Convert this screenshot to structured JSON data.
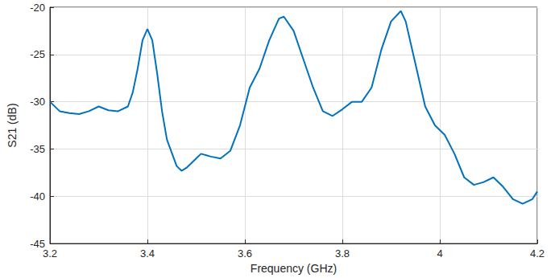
{
  "chart_data": {
    "type": "line",
    "x_label": "Frequency (GHz)",
    "y_label": "S21 (dB)",
    "xlim": [
      3.2,
      4.2
    ],
    "xticks": [
      3.2,
      3.4,
      3.6,
      3.8,
      4,
      4.2
    ],
    "ylim": [
      -45,
      -20
    ],
    "yticks": [
      -45,
      -40,
      -35,
      -30,
      -25,
      -20
    ],
    "grid": true,
    "series": [
      {
        "name": "S21",
        "color": "#0072bd",
        "x": [
          3.2,
          3.22,
          3.24,
          3.26,
          3.28,
          3.3,
          3.32,
          3.34,
          3.36,
          3.37,
          3.38,
          3.39,
          3.4,
          3.41,
          3.42,
          3.43,
          3.44,
          3.46,
          3.47,
          3.48,
          3.5,
          3.51,
          3.53,
          3.55,
          3.57,
          3.59,
          3.61,
          3.63,
          3.65,
          3.67,
          3.68,
          3.7,
          3.72,
          3.74,
          3.76,
          3.78,
          3.8,
          3.82,
          3.84,
          3.86,
          3.88,
          3.9,
          3.92,
          3.93,
          3.95,
          3.97,
          3.99,
          4.01,
          4.03,
          4.05,
          4.07,
          4.09,
          4.11,
          4.13,
          4.15,
          4.17,
          4.19,
          4.2
        ],
        "values": [
          -30.0,
          -31.0,
          -31.2,
          -31.3,
          -31.0,
          -30.5,
          -30.9,
          -31.0,
          -30.5,
          -29.0,
          -26.5,
          -23.5,
          -22.3,
          -23.5,
          -27.0,
          -31.0,
          -34.0,
          -36.8,
          -37.3,
          -37.0,
          -36.0,
          -35.5,
          -35.8,
          -36.0,
          -35.2,
          -32.5,
          -28.5,
          -26.5,
          -23.5,
          -21.2,
          -21.0,
          -22.5,
          -25.5,
          -28.5,
          -31.0,
          -31.5,
          -30.8,
          -30.0,
          -30.0,
          -28.5,
          -24.5,
          -21.5,
          -20.4,
          -21.5,
          -26.0,
          -30.5,
          -32.5,
          -33.5,
          -35.5,
          -38.0,
          -38.8,
          -38.5,
          -38.0,
          -39.0,
          -40.3,
          -40.8,
          -40.3,
          -39.5
        ]
      }
    ]
  }
}
